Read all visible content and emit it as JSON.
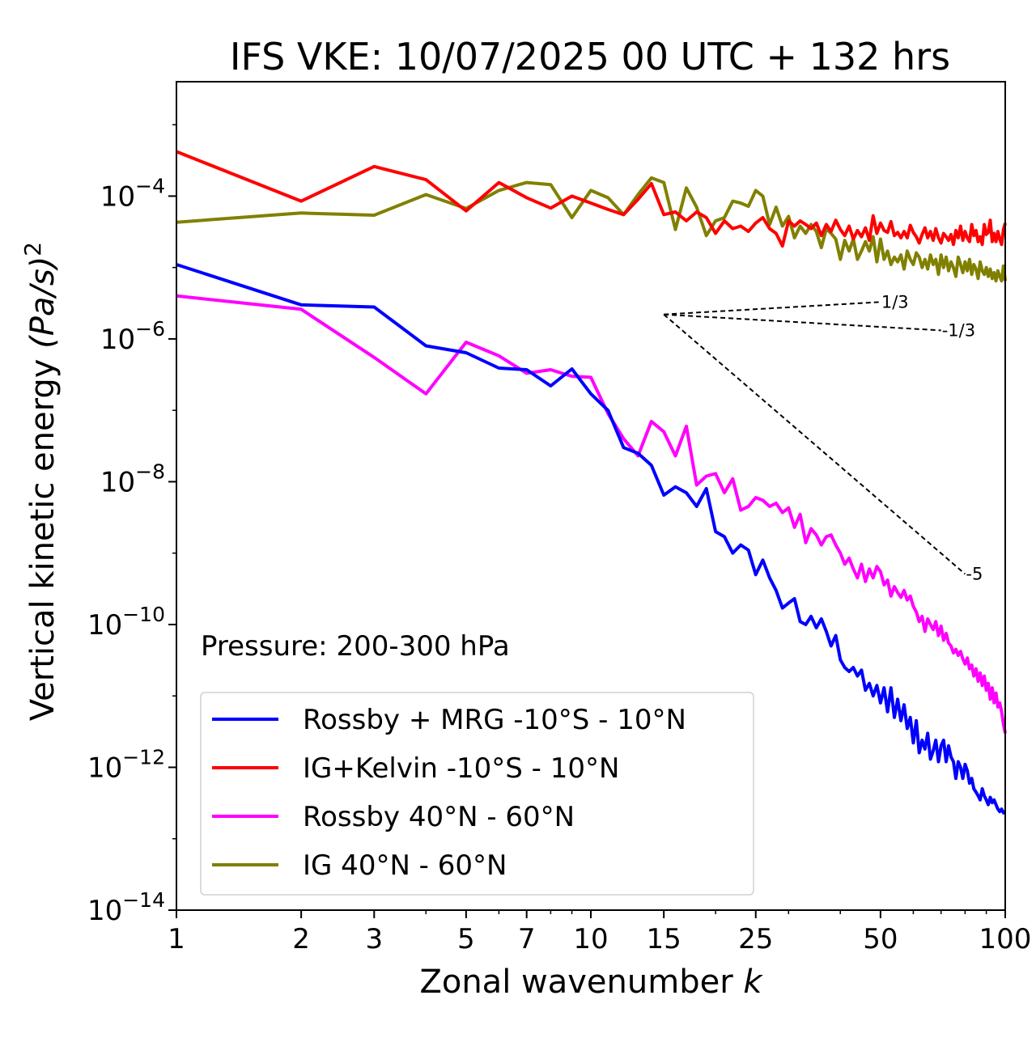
{
  "chart_data": {
    "type": "line",
    "title": "IFS VKE: 10/07/2025 00 UTC + 132 hrs",
    "xlabel": "Zonal wavenumber",
    "xlabel_var": "k",
    "ylabel": "Vertical kinetic energy",
    "ylabel_unit": "(Pa/s)",
    "ylabel_exp": "2",
    "x_scale": "log",
    "y_scale": "log",
    "xlim": [
      1,
      100
    ],
    "ylim": [
      1e-14,
      0.004
    ],
    "x_ticks": [
      1,
      2,
      3,
      5,
      7,
      10,
      15,
      25,
      50,
      100
    ],
    "x_tick_labels": [
      "1",
      "2",
      "3",
      "5",
      "7",
      "10",
      "15",
      "25",
      "50",
      "100"
    ],
    "y_ticks": [
      0.0001,
      1e-06,
      1e-08,
      1e-10,
      1e-12,
      1e-14
    ],
    "y_tick_labels": [
      {
        "base": "10",
        "exp": "−4"
      },
      {
        "base": "10",
        "exp": "−6"
      },
      {
        "base": "10",
        "exp": "−8"
      },
      {
        "base": "10",
        "exp": "−10"
      },
      {
        "base": "10",
        "exp": "−12"
      },
      {
        "base": "10",
        "exp": "−14"
      }
    ],
    "annotation": "Pressure: 200-300 hPa",
    "legend_position": "lower-left",
    "grid": false,
    "series": [
      {
        "name": "Rossby + MRG -10°S - 10°N",
        "color": "#0000ff",
        "x": [
          1,
          2,
          3,
          4,
          5,
          6,
          7,
          8,
          9,
          10,
          11,
          12,
          13,
          14,
          15,
          16,
          17,
          18,
          19,
          20,
          21,
          22,
          23,
          24,
          25,
          26,
          27,
          28,
          29,
          30,
          31,
          32,
          33,
          34,
          35,
          36,
          37,
          38,
          39,
          40,
          41,
          42,
          43,
          44,
          45,
          46,
          47,
          48,
          49,
          50,
          51,
          52,
          53,
          54,
          55,
          56,
          57,
          58,
          59,
          60,
          61,
          62,
          63,
          64,
          65,
          66,
          67,
          68,
          69,
          70,
          71,
          72,
          73,
          74,
          75,
          76,
          77,
          78,
          79,
          80,
          81,
          82,
          83,
          84,
          85,
          86,
          87,
          88,
          89,
          90,
          91,
          92,
          93,
          94,
          95,
          96,
          97,
          98,
          99,
          100
        ],
        "y": [
          1.1e-05,
          3e-06,
          2.8e-06,
          8e-07,
          6.4e-07,
          3.9e-07,
          3.7e-07,
          2.2e-07,
          3.8e-07,
          1.7e-07,
          1e-07,
          3e-08,
          2.5e-08,
          1.7e-08,
          6.5e-09,
          8.5e-09,
          7e-09,
          4.5e-09,
          8e-09,
          2e-09,
          1.7e-09,
          1e-09,
          1.3e-09,
          1.1e-09,
          5e-10,
          8e-10,
          4.5e-10,
          3e-10,
          1.7e-10,
          2e-10,
          2.3e-10,
          1.1e-10,
          1e-10,
          1.3e-10,
          9e-11,
          1.2e-10,
          8e-11,
          5e-11,
          7e-11,
          3.2e-11,
          2.5e-11,
          2.2e-11,
          2.5e-11,
          1.9e-11,
          2.3e-11,
          1.2e-11,
          1.5e-11,
          1e-11,
          1.4e-11,
          8e-12,
          1.3e-11,
          6e-12,
          1.3e-11,
          5e-12,
          9e-12,
          4.5e-12,
          7.5e-12,
          3.5e-12,
          5e-12,
          2.2e-12,
          4.5e-12,
          1.6e-12,
          2.4e-12,
          1.8e-12,
          3e-12,
          1.3e-12,
          1.7e-12,
          2.4e-12,
          1.2e-12,
          2e-12,
          2.4e-12,
          1.2e-12,
          2e-12,
          1.4e-12,
          1.2e-12,
          7e-13,
          1.2e-12,
          1e-12,
          7e-13,
          1.1e-12,
          9e-13,
          6e-13,
          7e-13,
          5e-13,
          4.5e-13,
          4e-13,
          3.5e-13,
          5e-13,
          4e-13,
          3.5e-13,
          3e-13,
          3.8e-13,
          3.2e-13,
          3.5e-13,
          3e-13,
          2.6e-13,
          2.4e-13,
          2.6e-13,
          2.3e-13,
          2.4e-13
        ]
      },
      {
        "name": "IG+Kelvin -10°S - 10°N",
        "color": "#ff0000",
        "x": [
          1,
          2,
          3,
          4,
          5,
          6,
          7,
          8,
          9,
          10,
          11,
          12,
          13,
          14,
          15,
          16,
          17,
          18,
          19,
          20,
          21,
          22,
          23,
          24,
          25,
          26,
          27,
          28,
          29,
          30,
          31,
          32,
          33,
          34,
          35,
          36,
          37,
          38,
          39,
          40,
          41,
          42,
          43,
          44,
          45,
          46,
          47,
          48,
          49,
          50,
          51,
          52,
          53,
          54,
          55,
          56,
          57,
          58,
          59,
          60,
          61,
          62,
          63,
          64,
          65,
          66,
          67,
          68,
          69,
          70,
          71,
          72,
          73,
          74,
          75,
          76,
          77,
          78,
          79,
          80,
          81,
          82,
          83,
          84,
          85,
          86,
          87,
          88,
          89,
          90,
          91,
          92,
          93,
          94,
          95,
          96,
          97,
          98,
          99,
          100
        ],
        "y": [
          0.00042,
          8.5e-05,
          0.00026,
          0.00017,
          6.2e-05,
          0.000155,
          9.5e-05,
          6.8e-05,
          0.0001,
          8e-05,
          6.5e-05,
          5.5e-05,
          9e-05,
          0.00015,
          5.5e-05,
          6e-05,
          4.5e-05,
          6e-05,
          5e-05,
          3e-05,
          4.5e-05,
          3.5e-05,
          3.8e-05,
          3.2e-05,
          4.2e-05,
          5e-05,
          3.5e-05,
          3e-05,
          2e-05,
          4.5e-05,
          3.8e-05,
          4.5e-05,
          4e-05,
          3.5e-05,
          4.2e-05,
          2.8e-05,
          4e-05,
          3.2e-05,
          4.6e-05,
          3.4e-05,
          2.8e-05,
          3.8e-05,
          2.5e-05,
          3.3e-05,
          2.7e-05,
          3.6e-05,
          2.4e-05,
          5.3e-05,
          3e-05,
          4.2e-05,
          3.3e-05,
          3.1e-05,
          4.4e-05,
          2.8e-05,
          3.1e-05,
          2.6e-05,
          3.2e-05,
          2.6e-05,
          3.9e-05,
          3.1e-05,
          2.7e-05,
          2.2e-05,
          2.9e-05,
          3.6e-05,
          2.6e-05,
          3.2e-05,
          2.4e-05,
          3.5e-05,
          2.6e-05,
          2.2e-05,
          3e-05,
          2.7e-05,
          2.4e-05,
          2.9e-05,
          2.1e-05,
          3.3e-05,
          2.6e-05,
          3.8e-05,
          2.4e-05,
          3.2e-05,
          2.6e-05,
          2.3e-05,
          4e-05,
          2.8e-05,
          3.3e-05,
          2.3e-05,
          2.7e-05,
          2.1e-05,
          4e-05,
          2.9e-05,
          3.1e-05,
          4.6e-05,
          2.3e-05,
          3e-05,
          2.3e-05,
          3.2e-05,
          2.5e-05,
          2.1e-05,
          3.4e-05,
          4.2e-05
        ]
      },
      {
        "name": "Rossby 40°N - 60°N",
        "color": "#ff00ff",
        "x": [
          1,
          2,
          3,
          4,
          5,
          6,
          7,
          8,
          9,
          10,
          11,
          12,
          13,
          14,
          15,
          16,
          17,
          18,
          19,
          20,
          21,
          22,
          23,
          24,
          25,
          26,
          27,
          28,
          29,
          30,
          31,
          32,
          33,
          34,
          35,
          36,
          37,
          38,
          39,
          40,
          41,
          42,
          43,
          44,
          45,
          46,
          47,
          48,
          49,
          50,
          51,
          52,
          53,
          54,
          55,
          56,
          57,
          58,
          59,
          60,
          61,
          62,
          63,
          64,
          65,
          66,
          67,
          68,
          69,
          70,
          71,
          72,
          73,
          74,
          75,
          76,
          77,
          78,
          79,
          80,
          81,
          82,
          83,
          84,
          85,
          86,
          87,
          88,
          89,
          90,
          91,
          92,
          93,
          94,
          95,
          96,
          97,
          98,
          99,
          100
        ],
        "y": [
          4e-06,
          2.6e-06,
          5.5e-07,
          1.7e-07,
          9e-07,
          5.8e-07,
          3.3e-07,
          3.7e-07,
          3e-07,
          2.9e-07,
          9e-08,
          4e-08,
          2.3e-08,
          7e-08,
          5e-08,
          2.3e-08,
          6e-08,
          9e-09,
          1.2e-08,
          1.3e-08,
          7e-09,
          1.1e-08,
          4e-09,
          4.5e-09,
          6e-09,
          5.5e-09,
          4.5e-09,
          5e-09,
          3.7e-09,
          4.3e-09,
          2.3e-09,
          3.5e-09,
          1.4e-09,
          2.2e-09,
          1.8e-09,
          1.3e-09,
          1.7e-09,
          1.8e-09,
          1.3e-09,
          1e-09,
          7e-10,
          8.5e-10,
          6e-10,
          4.5e-10,
          7e-10,
          4e-10,
          6e-10,
          4.5e-10,
          6.5e-10,
          5.5e-10,
          3.6e-10,
          4.2e-10,
          2.5e-10,
          3.4e-10,
          2.8e-10,
          2.4e-10,
          3e-10,
          2.2e-10,
          2.5e-10,
          1.8e-10,
          1.5e-10,
          1.1e-10,
          1.3e-10,
          8e-11,
          1.2e-10,
          1e-10,
          8.5e-11,
          1.1e-10,
          7e-11,
          9.5e-11,
          6e-11,
          7.5e-11,
          5.5e-11,
          5e-11,
          4e-11,
          4.5e-11,
          3.7e-11,
          4.2e-11,
          3.3e-11,
          2.8e-11,
          3.4e-11,
          2.4e-11,
          2.7e-11,
          1.9e-11,
          2.4e-11,
          1.6e-11,
          2.1e-11,
          1.4e-11,
          1.9e-11,
          1.2e-11,
          1.5e-11,
          9e-12,
          1.3e-11,
          8e-12,
          1.1e-11,
          7e-12,
          8e-12,
          6e-12,
          4e-12,
          3e-12
        ]
      },
      {
        "name": "IG 40°N - 60°N",
        "color": "#808000",
        "x": [
          1,
          2,
          3,
          4,
          5,
          6,
          7,
          8,
          9,
          10,
          11,
          12,
          13,
          14,
          15,
          16,
          17,
          18,
          19,
          20,
          21,
          22,
          23,
          24,
          25,
          26,
          27,
          28,
          29,
          30,
          31,
          32,
          33,
          34,
          35,
          36,
          37,
          38,
          39,
          40,
          41,
          42,
          43,
          44,
          45,
          46,
          47,
          48,
          49,
          50,
          51,
          52,
          53,
          54,
          55,
          56,
          57,
          58,
          59,
          60,
          61,
          62,
          63,
          64,
          65,
          66,
          67,
          68,
          69,
          70,
          71,
          72,
          73,
          74,
          75,
          76,
          77,
          78,
          79,
          80,
          81,
          82,
          83,
          84,
          85,
          86,
          87,
          88,
          89,
          90,
          91,
          92,
          93,
          94,
          95,
          96,
          97,
          98,
          99,
          100
        ],
        "y": [
          4.3e-05,
          5.8e-05,
          5.4e-05,
          0.000105,
          6.7e-05,
          0.00012,
          0.000155,
          0.000145,
          5e-05,
          0.00012,
          9.5e-05,
          5.5e-05,
          0.000105,
          0.00018,
          0.000155,
          3.4e-05,
          0.00013,
          7e-05,
          2.8e-05,
          4.5e-05,
          5e-05,
          8.5e-05,
          8e-05,
          7.2e-05,
          0.00012,
          0.0001,
          4e-05,
          7e-05,
          3.8e-05,
          5.2e-05,
          2.6e-05,
          3.8e-05,
          3e-05,
          4e-05,
          3.2e-05,
          1.9e-05,
          3.5e-05,
          3e-05,
          2.5e-05,
          1.3e-05,
          2.4e-05,
          1.7e-05,
          2.5e-05,
          1.3e-05,
          1.7e-05,
          2.3e-05,
          1.7e-05,
          2.7e-05,
          1.2e-05,
          2.5e-05,
          1.3e-05,
          1.7e-05,
          1.1e-05,
          1.4e-05,
          1.2e-05,
          1.5e-05,
          9.5e-06,
          1.7e-05,
          1.3e-05,
          1.1e-05,
          1.6e-05,
          1.4e-05,
          1e-05,
          1.3e-05,
          9.5e-06,
          1.5e-05,
          1.1e-05,
          1.3e-05,
          8e-06,
          1.5e-05,
          1e-05,
          1.4e-05,
          9e-06,
          1.2e-05,
          1e-05,
          7.5e-06,
          1.4e-05,
          1.1e-05,
          8.5e-06,
          1.2e-05,
          9e-06,
          1.3e-05,
          8e-06,
          1.1e-05,
          9.5e-06,
          7e-06,
          1.2e-05,
          9e-06,
          8e-06,
          1e-05,
          7.5e-06,
          9.5e-06,
          7e-06,
          8.5e-06,
          6.5e-06,
          9e-06,
          7.5e-06,
          6.5e-06,
          1.05e-05,
          6.5e-06
        ]
      }
    ],
    "reference_lines": [
      {
        "label": "1/3",
        "slope": 0.3333,
        "x_start": 15,
        "y_start": 2.2e-06,
        "x_end": 50
      },
      {
        "label": "-1/3",
        "slope": -0.3333,
        "x_start": 15,
        "y_start": 2.2e-06,
        "x_end": 70
      },
      {
        "label": "-5",
        "slope": -5,
        "x_start": 15,
        "y_start": 2.2e-06,
        "x_end": 80
      }
    ]
  }
}
